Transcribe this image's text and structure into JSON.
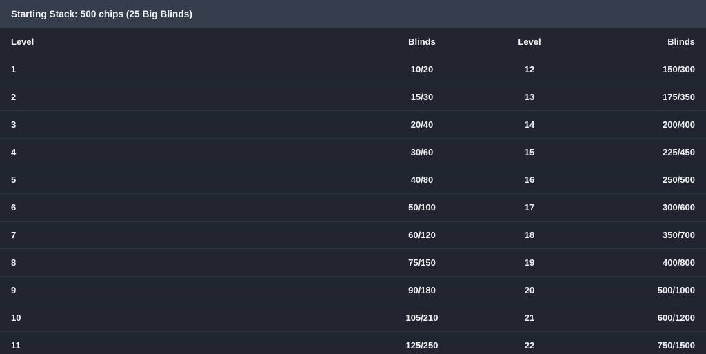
{
  "title_bar": {
    "text": "Starting Stack: 500 chips (25 Big Blinds)"
  },
  "table": {
    "headers": [
      "Level",
      "Blinds",
      "Level",
      "Blinds"
    ],
    "rows": [
      [
        "1",
        "10/20",
        "12",
        "150/300"
      ],
      [
        "2",
        "15/30",
        "13",
        "175/350"
      ],
      [
        "3",
        "20/40",
        "14",
        "200/400"
      ],
      [
        "4",
        "30/60",
        "15",
        "225/450"
      ],
      [
        "5",
        "40/80",
        "16",
        "250/500"
      ],
      [
        "6",
        "50/100",
        "17",
        "300/600"
      ],
      [
        "7",
        "60/120",
        "18",
        "350/700"
      ],
      [
        "8",
        "75/150",
        "19",
        "400/800"
      ],
      [
        "9",
        "90/180",
        "20",
        "500/1000"
      ],
      [
        "10",
        "105/210",
        "21",
        "600/1200"
      ],
      [
        "11",
        "125/250",
        "22",
        "750/1500"
      ]
    ]
  },
  "colors": {
    "top_bar_background": "#353c4b",
    "table_background": "#21252f",
    "row_separator": "#2d3340",
    "text": "#eef0f3"
  }
}
